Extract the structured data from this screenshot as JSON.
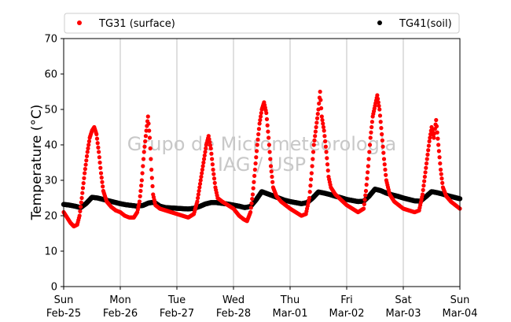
{
  "chart_data": {
    "type": "scatter",
    "ylabel": "Temperature (°C)",
    "ylim": [
      0,
      70
    ],
    "yticks": [
      0,
      10,
      20,
      30,
      40,
      50,
      60,
      70
    ],
    "xlim": [
      0,
      7
    ],
    "x_unit": "days from Sun Feb-25 00:00",
    "xticks": [
      {
        "day": "Sun",
        "date": "Feb-25"
      },
      {
        "day": "Mon",
        "date": "Feb-26"
      },
      {
        "day": "Tue",
        "date": "Feb-27"
      },
      {
        "day": "Wed",
        "date": "Feb-28"
      },
      {
        "day": "Thu",
        "date": "Mar-01"
      },
      {
        "day": "Fri",
        "date": "Mar-02"
      },
      {
        "day": "Sat",
        "date": "Mar-03"
      },
      {
        "day": "Sun",
        "date": "Mar-04"
      }
    ],
    "x_grid": true,
    "legend_position": "top",
    "watermark": [
      "Grupo de Micrometeorologia",
      "IAG / USP"
    ],
    "series": [
      {
        "name": "TG31 (surface)",
        "color": "#ff0000",
        "points": [
          [
            0.0,
            21.0
          ],
          [
            0.06,
            19.5
          ],
          [
            0.12,
            18.0
          ],
          [
            0.18,
            17.0
          ],
          [
            0.24,
            17.5
          ],
          [
            0.28,
            20.0
          ],
          [
            0.32,
            25.0
          ],
          [
            0.37,
            32.0
          ],
          [
            0.42,
            38.0
          ],
          [
            0.46,
            42.0
          ],
          [
            0.5,
            44.0
          ],
          [
            0.54,
            45.0
          ],
          [
            0.58,
            43.0
          ],
          [
            0.62,
            38.0
          ],
          [
            0.66,
            32.0
          ],
          [
            0.7,
            27.0
          ],
          [
            0.76,
            24.0
          ],
          [
            0.84,
            22.5
          ],
          [
            0.92,
            21.5
          ],
          [
            1.0,
            21.0
          ],
          [
            1.08,
            20.0
          ],
          [
            1.16,
            19.5
          ],
          [
            1.24,
            19.5
          ],
          [
            1.3,
            21.0
          ],
          [
            1.34,
            24.0
          ],
          [
            1.38,
            30.0
          ],
          [
            1.42,
            38.0
          ],
          [
            1.46,
            44.0
          ],
          [
            1.49,
            48.0
          ],
          [
            1.52,
            42.0
          ],
          [
            1.55,
            33.0
          ],
          [
            1.58,
            26.0
          ],
          [
            1.62,
            23.0
          ],
          [
            1.7,
            22.0
          ],
          [
            1.8,
            21.5
          ],
          [
            1.9,
            21.0
          ],
          [
            2.0,
            20.5
          ],
          [
            2.1,
            20.0
          ],
          [
            2.2,
            19.5
          ],
          [
            2.3,
            20.5
          ],
          [
            2.36,
            24.0
          ],
          [
            2.42,
            30.0
          ],
          [
            2.48,
            36.0
          ],
          [
            2.52,
            40.0
          ],
          [
            2.56,
            42.5
          ],
          [
            2.6,
            39.0
          ],
          [
            2.64,
            33.0
          ],
          [
            2.68,
            28.0
          ],
          [
            2.72,
            25.0
          ],
          [
            2.8,
            24.0
          ],
          [
            2.9,
            23.0
          ],
          [
            3.0,
            22.0
          ],
          [
            3.1,
            20.0
          ],
          [
            3.18,
            19.0
          ],
          [
            3.24,
            18.5
          ],
          [
            3.3,
            21.0
          ],
          [
            3.34,
            26.0
          ],
          [
            3.38,
            33.0
          ],
          [
            3.42,
            40.0
          ],
          [
            3.46,
            46.0
          ],
          [
            3.5,
            50.0
          ],
          [
            3.54,
            52.0
          ],
          [
            3.58,
            49.0
          ],
          [
            3.62,
            42.0
          ],
          [
            3.66,
            34.0
          ],
          [
            3.7,
            28.0
          ],
          [
            3.76,
            25.5
          ],
          [
            3.84,
            24.0
          ],
          [
            3.92,
            23.0
          ],
          [
            4.0,
            22.0
          ],
          [
            4.1,
            21.0
          ],
          [
            4.2,
            20.0
          ],
          [
            4.28,
            20.5
          ],
          [
            4.34,
            25.0
          ],
          [
            4.38,
            32.0
          ],
          [
            4.42,
            40.0
          ],
          [
            4.46,
            45.0
          ],
          [
            4.5,
            50.0
          ],
          [
            4.53,
            55.0
          ],
          [
            4.56,
            48.0
          ],
          [
            4.6,
            44.0
          ],
          [
            4.64,
            38.0
          ],
          [
            4.68,
            31.0
          ],
          [
            4.72,
            28.0
          ],
          [
            4.8,
            26.0
          ],
          [
            4.9,
            24.5
          ],
          [
            5.0,
            23.0
          ],
          [
            5.1,
            22.0
          ],
          [
            5.2,
            21.0
          ],
          [
            5.3,
            22.0
          ],
          [
            5.34,
            27.0
          ],
          [
            5.38,
            34.0
          ],
          [
            5.42,
            42.0
          ],
          [
            5.46,
            48.0
          ],
          [
            5.5,
            51.0
          ],
          [
            5.54,
            54.0
          ],
          [
            5.58,
            50.0
          ],
          [
            5.62,
            43.0
          ],
          [
            5.66,
            36.0
          ],
          [
            5.7,
            30.0
          ],
          [
            5.76,
            26.0
          ],
          [
            5.84,
            24.0
          ],
          [
            5.92,
            23.0
          ],
          [
            6.0,
            22.0
          ],
          [
            6.1,
            21.5
          ],
          [
            6.2,
            21.0
          ],
          [
            6.28,
            21.5
          ],
          [
            6.34,
            26.0
          ],
          [
            6.38,
            31.0
          ],
          [
            6.42,
            36.0
          ],
          [
            6.46,
            41.0
          ],
          [
            6.5,
            45.0
          ],
          [
            6.54,
            42.0
          ],
          [
            6.58,
            47.0
          ],
          [
            6.62,
            40.0
          ],
          [
            6.66,
            33.0
          ],
          [
            6.7,
            28.0
          ],
          [
            6.76,
            25.5
          ],
          [
            6.84,
            24.0
          ],
          [
            6.92,
            23.0
          ],
          [
            7.0,
            22.0
          ]
        ]
      },
      {
        "name": "TG41(soil)",
        "color": "#000000",
        "points": [
          [
            0.0,
            23.2
          ],
          [
            0.1,
            23.0
          ],
          [
            0.2,
            22.7
          ],
          [
            0.3,
            22.3
          ],
          [
            0.4,
            23.5
          ],
          [
            0.5,
            25.2
          ],
          [
            0.6,
            25.0
          ],
          [
            0.7,
            24.6
          ],
          [
            0.8,
            24.2
          ],
          [
            0.9,
            23.8
          ],
          [
            1.0,
            23.4
          ],
          [
            1.1,
            23.1
          ],
          [
            1.2,
            22.9
          ],
          [
            1.3,
            22.7
          ],
          [
            1.4,
            22.9
          ],
          [
            1.5,
            23.6
          ],
          [
            1.6,
            23.8
          ],
          [
            1.7,
            22.7
          ],
          [
            1.8,
            22.3
          ],
          [
            1.9,
            22.2
          ],
          [
            2.0,
            22.1
          ],
          [
            2.1,
            22.0
          ],
          [
            2.2,
            21.9
          ],
          [
            2.3,
            22.1
          ],
          [
            2.4,
            22.6
          ],
          [
            2.5,
            23.3
          ],
          [
            2.6,
            23.7
          ],
          [
            2.7,
            23.7
          ],
          [
            2.8,
            23.5
          ],
          [
            2.9,
            23.3
          ],
          [
            3.0,
            23.0
          ],
          [
            3.1,
            22.7
          ],
          [
            3.2,
            22.3
          ],
          [
            3.3,
            22.6
          ],
          [
            3.4,
            24.5
          ],
          [
            3.5,
            26.8
          ],
          [
            3.6,
            26.2
          ],
          [
            3.7,
            25.6
          ],
          [
            3.8,
            25.0
          ],
          [
            3.9,
            24.4
          ],
          [
            4.0,
            24.0
          ],
          [
            4.1,
            23.7
          ],
          [
            4.2,
            23.4
          ],
          [
            4.3,
            23.7
          ],
          [
            4.4,
            25.0
          ],
          [
            4.5,
            26.7
          ],
          [
            4.6,
            26.4
          ],
          [
            4.7,
            26.0
          ],
          [
            4.8,
            25.5
          ],
          [
            4.9,
            25.1
          ],
          [
            5.0,
            24.6
          ],
          [
            5.1,
            24.3
          ],
          [
            5.2,
            24.0
          ],
          [
            5.3,
            24.1
          ],
          [
            5.4,
            25.6
          ],
          [
            5.5,
            27.5
          ],
          [
            5.6,
            27.1
          ],
          [
            5.7,
            26.4
          ],
          [
            5.8,
            25.9
          ],
          [
            5.9,
            25.5
          ],
          [
            6.0,
            25.0
          ],
          [
            6.1,
            24.6
          ],
          [
            6.2,
            24.2
          ],
          [
            6.3,
            24.1
          ],
          [
            6.4,
            25.4
          ],
          [
            6.5,
            26.8
          ],
          [
            6.6,
            26.5
          ],
          [
            6.7,
            26.1
          ],
          [
            6.8,
            25.6
          ],
          [
            6.9,
            25.2
          ],
          [
            7.0,
            24.8
          ]
        ]
      }
    ]
  }
}
